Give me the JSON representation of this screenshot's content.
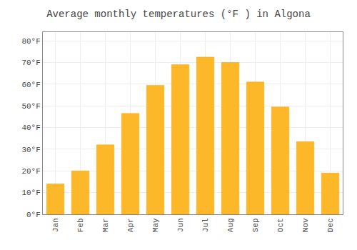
{
  "chart_data": {
    "type": "bar",
    "title": "Average monthly temperatures (°F ) in Algona",
    "categories": [
      "Jan",
      "Feb",
      "Mar",
      "Apr",
      "May",
      "Jun",
      "Jul",
      "Aug",
      "Sep",
      "Oct",
      "Nov",
      "Dec"
    ],
    "values": [
      14,
      20,
      32,
      46.5,
      59.5,
      69,
      72.5,
      70,
      61,
      49.5,
      33.5,
      19
    ],
    "color": "#FDB82A",
    "ylim": [
      0,
      84
    ],
    "yticks": [
      {
        "value": 0,
        "label": "0°F"
      },
      {
        "value": 10,
        "label": "10°F"
      },
      {
        "value": 20,
        "label": "20°F"
      },
      {
        "value": 30,
        "label": "30°F"
      },
      {
        "value": 40,
        "label": "40°F"
      },
      {
        "value": 50,
        "label": "50°F"
      },
      {
        "value": 60,
        "label": "60°F"
      },
      {
        "value": 70,
        "label": "70°F"
      },
      {
        "value": 80,
        "label": "80°F"
      }
    ],
    "grid": true
  }
}
